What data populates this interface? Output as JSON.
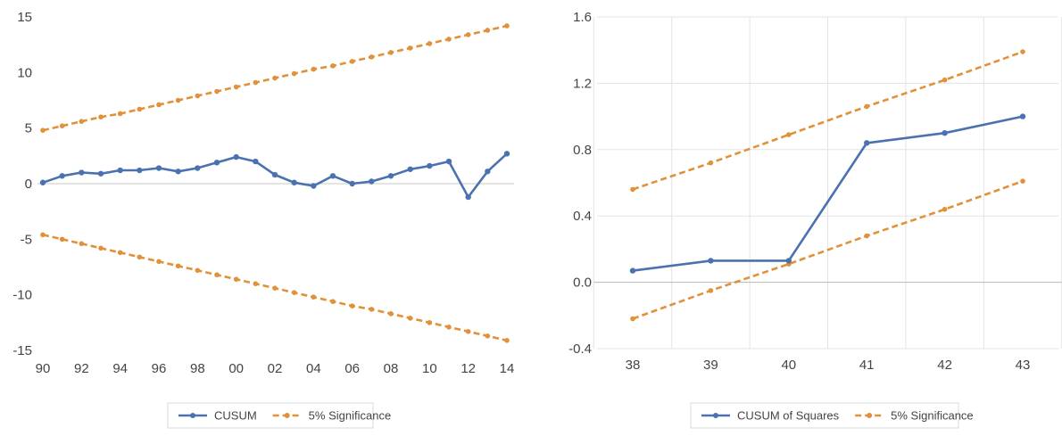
{
  "chart_data": [
    {
      "type": "line",
      "title": "",
      "xlabel": "",
      "ylabel": "",
      "x": [
        "90",
        "91",
        "92",
        "93",
        "94",
        "95",
        "96",
        "97",
        "98",
        "99",
        "00",
        "01",
        "02",
        "03",
        "04",
        "05",
        "06",
        "07",
        "08",
        "09",
        "10",
        "11",
        "12",
        "13",
        "14"
      ],
      "x_tick_labels": [
        "90",
        "92",
        "94",
        "96",
        "98",
        "00",
        "02",
        "04",
        "06",
        "08",
        "10",
        "12",
        "14"
      ],
      "y_ticks": [
        "15",
        "10",
        "5",
        "0",
        "-5",
        "-10",
        "-15"
      ],
      "ylim": [
        -15,
        15
      ],
      "grid": "horizontal gridlines only at 0",
      "legend_position": "bottom",
      "series": [
        {
          "name": "CUSUM",
          "color": "#4a72b0",
          "style": "solid",
          "values": [
            0.1,
            0.7,
            1.0,
            0.9,
            1.2,
            1.2,
            1.4,
            1.1,
            1.4,
            1.9,
            2.4,
            2.0,
            0.8,
            0.1,
            -0.2,
            0.7,
            0.0,
            0.2,
            0.7,
            1.3,
            1.6,
            2.0,
            -1.2,
            1.1,
            2.7
          ]
        },
        {
          "name": "5% Significance",
          "color": "#e0913a",
          "style": "dashed",
          "values": [
            4.8,
            5.2,
            5.6,
            6.0,
            6.3,
            6.7,
            7.1,
            7.5,
            7.9,
            8.3,
            8.7,
            9.1,
            9.5,
            9.9,
            10.3,
            10.6,
            11.0,
            11.4,
            11.8,
            12.2,
            12.6,
            13.0,
            13.4,
            13.8,
            14.2
          ]
        },
        {
          "name": "5% Significance",
          "color": "#e0913a",
          "style": "dashed",
          "show_in_legend": false,
          "values": [
            -4.6,
            -5.0,
            -5.4,
            -5.8,
            -6.2,
            -6.6,
            -7.0,
            -7.4,
            -7.8,
            -8.2,
            -8.6,
            -9.0,
            -9.4,
            -9.8,
            -10.2,
            -10.6,
            -11.0,
            -11.3,
            -11.7,
            -12.1,
            -12.5,
            -12.9,
            -13.3,
            -13.7,
            -14.1
          ]
        }
      ]
    },
    {
      "type": "line",
      "title": "",
      "xlabel": "",
      "ylabel": "",
      "x": [
        "38",
        "39",
        "40",
        "41",
        "42",
        "43"
      ],
      "y_ticks": [
        "1.6",
        "1.2",
        "0.8",
        "0.4",
        "0.0",
        "-0.4"
      ],
      "ylim": [
        -0.4,
        1.6
      ],
      "grid": "horizontal gridlines and vertical category gridlines",
      "legend_position": "bottom",
      "series": [
        {
          "name": "CUSUM of Squares",
          "color": "#4a72b0",
          "style": "solid",
          "values": [
            0.07,
            0.13,
            0.13,
            0.84,
            0.9,
            1.0
          ]
        },
        {
          "name": "5% Significance",
          "color": "#e0913a",
          "style": "dashed",
          "values": [
            0.56,
            0.72,
            0.89,
            1.06,
            1.22,
            1.39
          ]
        },
        {
          "name": "5% Significance",
          "color": "#e0913a",
          "style": "dashed",
          "show_in_legend": false,
          "values": [
            -0.22,
            -0.05,
            0.11,
            0.28,
            0.44,
            0.61
          ]
        }
      ]
    }
  ]
}
